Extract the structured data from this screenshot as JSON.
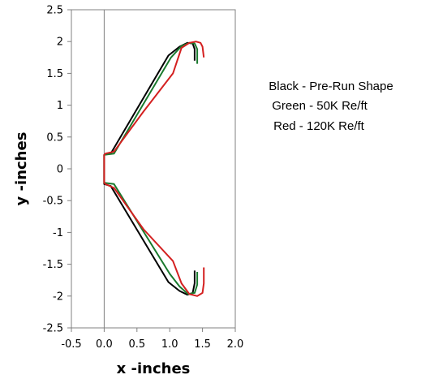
{
  "chart_data": {
    "type": "line",
    "title": "",
    "xlabel": "x -inches",
    "ylabel": "y -inches",
    "xlim": [
      -0.5,
      2.0
    ],
    "ylim": [
      -2.5,
      2.5
    ],
    "xticks": [
      "-0.5",
      "0.0",
      "0.5",
      "1.0",
      "1.5",
      "2.0"
    ],
    "yticks": [
      "2.5",
      "2",
      "1.5",
      "1",
      "0.5",
      "0",
      "-0.5",
      "-1",
      "-1.5",
      "-2",
      "-2.5"
    ],
    "grid": false,
    "legend": {
      "placement": "right",
      "lines": [
        "Black - Pre-Run Shape",
        "Green -   50K Re/ft",
        "Red - 120K Re/ft"
      ]
    },
    "series": [
      {
        "name": "Black - Pre-Run Shape",
        "color": "#000000",
        "x": [
          1.38,
          1.38,
          1.35,
          1.27,
          1.15,
          0.98,
          0.1,
          0.0,
          0.0,
          0.0,
          0.0,
          0.0,
          0.1,
          0.98,
          1.15,
          1.27,
          1.35,
          1.38,
          1.38
        ],
        "y": [
          1.7,
          1.88,
          1.97,
          1.98,
          1.92,
          1.78,
          0.24,
          0.22,
          0.0,
          -0.22,
          -0.22,
          -0.24,
          -0.27,
          -1.78,
          -1.92,
          -1.98,
          -1.95,
          -1.8,
          -1.6
        ]
      },
      {
        "name": "Green -   50K Re/ft",
        "color": "#1a7a2e",
        "x": [
          1.42,
          1.42,
          1.38,
          1.3,
          1.18,
          1.02,
          0.15,
          0.0,
          0.0,
          0.0,
          0.15,
          1.0,
          1.15,
          1.28,
          1.38,
          1.42,
          1.42
        ],
        "y": [
          1.65,
          1.88,
          1.97,
          1.98,
          1.93,
          1.75,
          0.24,
          0.22,
          0.0,
          -0.22,
          -0.24,
          -1.65,
          -1.85,
          -1.97,
          -1.95,
          -1.82,
          -1.62
        ]
      },
      {
        "name": "Red - 120K Re/ft",
        "color": "#d42020",
        "x": [
          1.52,
          1.5,
          1.47,
          1.4,
          1.3,
          1.18,
          1.05,
          0.6,
          0.15,
          0.02,
          0.0,
          0.0,
          0.0,
          0.02,
          0.15,
          0.6,
          1.05,
          1.18,
          1.3,
          1.42,
          1.5,
          1.52,
          1.52
        ],
        "y": [
          1.75,
          1.92,
          1.98,
          2.0,
          1.98,
          1.9,
          1.5,
          0.9,
          0.27,
          0.24,
          0.22,
          0.0,
          -0.22,
          -0.24,
          -0.3,
          -0.95,
          -1.45,
          -1.8,
          -1.97,
          -2.0,
          -1.95,
          -1.8,
          -1.55
        ]
      }
    ]
  }
}
